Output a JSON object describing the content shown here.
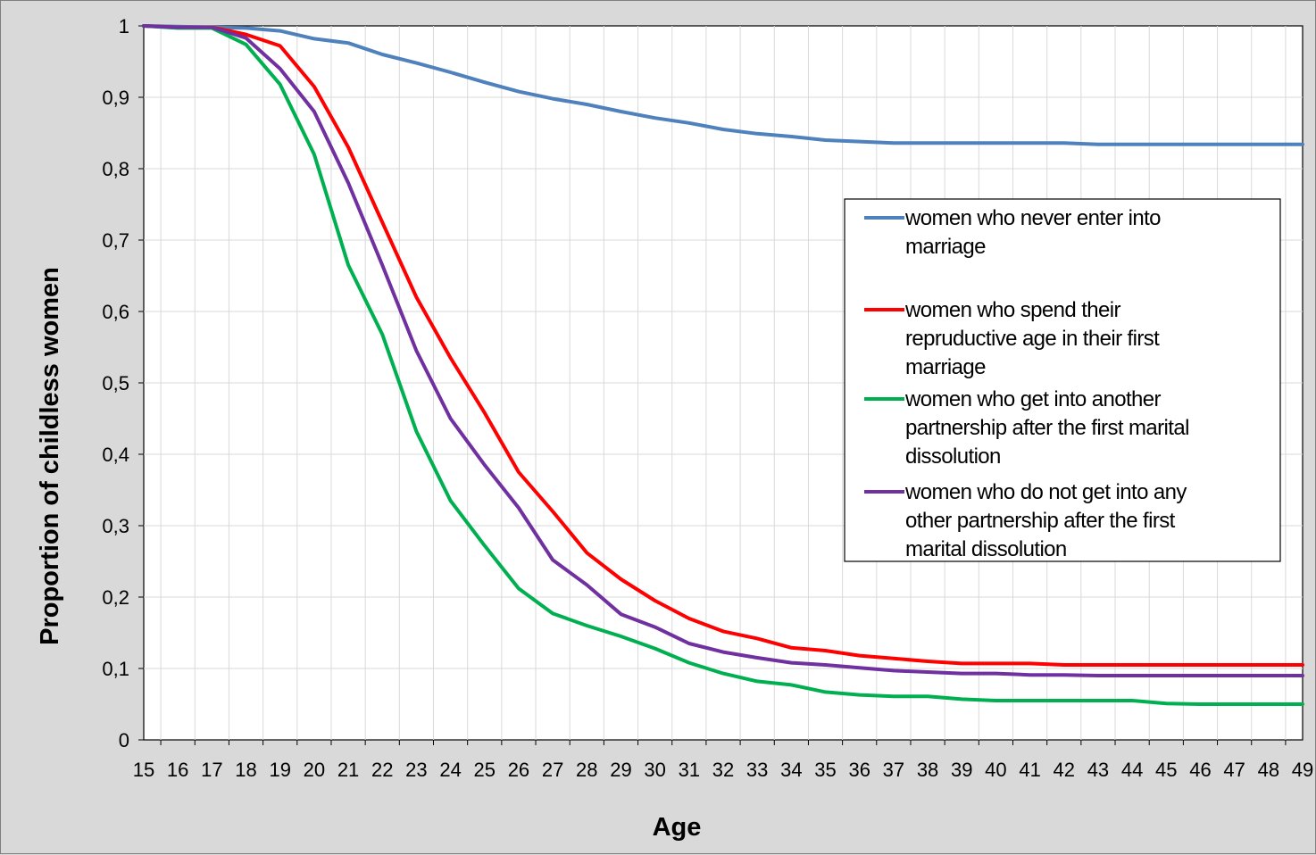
{
  "chart_data": {
    "type": "line",
    "title": "",
    "xlabel": "Age",
    "ylabel": "Proportion of childless women",
    "x": [
      15,
      16,
      17,
      18,
      19,
      20,
      21,
      22,
      23,
      24,
      25,
      26,
      27,
      28,
      29,
      30,
      31,
      32,
      33,
      34,
      35,
      36,
      37,
      38,
      39,
      40,
      41,
      42,
      43,
      44,
      45,
      46,
      47,
      48,
      49
    ],
    "yticks": [
      "0",
      "0,1",
      "0,2",
      "0,3",
      "0,4",
      "0,5",
      "0,6",
      "0,7",
      "0,8",
      "0,9",
      "1"
    ],
    "ylim": [
      0,
      1
    ],
    "grid": true,
    "legend_position": "right",
    "series": [
      {
        "name_lines": [
          "women who never enter into",
          "marriage"
        ],
        "color": "#4f81bd",
        "values": [
          1.0,
          0.999,
          0.998,
          0.997,
          0.993,
          0.982,
          0.976,
          0.96,
          0.948,
          0.935,
          0.921,
          0.908,
          0.898,
          0.89,
          0.88,
          0.871,
          0.864,
          0.855,
          0.849,
          0.845,
          0.84,
          0.838,
          0.836,
          0.836,
          0.836,
          0.836,
          0.836,
          0.836,
          0.834,
          0.834,
          0.834,
          0.834,
          0.834,
          0.834,
          0.834
        ]
      },
      {
        "name_lines": [
          "women who spend their",
          "repruductive age in their first",
          "marriage"
        ],
        "color": "#ff0000",
        "values": [
          1.0,
          0.998,
          0.998,
          0.988,
          0.972,
          0.915,
          0.83,
          0.725,
          0.62,
          0.535,
          0.458,
          0.375,
          0.32,
          0.262,
          0.225,
          0.195,
          0.17,
          0.152,
          0.142,
          0.129,
          0.125,
          0.118,
          0.114,
          0.11,
          0.107,
          0.107,
          0.107,
          0.105,
          0.105,
          0.105,
          0.105,
          0.105,
          0.105,
          0.105,
          0.105
        ]
      },
      {
        "name_lines": [
          "women who get into another",
          "partnership after the first marital",
          "dissolution"
        ],
        "color": "#00b050",
        "values": [
          1.0,
          0.997,
          0.997,
          0.974,
          0.918,
          0.82,
          0.665,
          0.568,
          0.432,
          0.335,
          0.272,
          0.212,
          0.177,
          0.16,
          0.145,
          0.128,
          0.108,
          0.093,
          0.082,
          0.077,
          0.067,
          0.063,
          0.061,
          0.061,
          0.057,
          0.055,
          0.055,
          0.055,
          0.055,
          0.055,
          0.051,
          0.05,
          0.05,
          0.05,
          0.05
        ]
      },
      {
        "name_lines": [
          "women who do not get into any",
          "other partnership after the first",
          "marital dissolution"
        ],
        "color": "#7030a0",
        "values": [
          1.0,
          0.998,
          0.998,
          0.983,
          0.94,
          0.88,
          0.78,
          0.665,
          0.545,
          0.45,
          0.385,
          0.325,
          0.252,
          0.217,
          0.176,
          0.158,
          0.135,
          0.123,
          0.115,
          0.108,
          0.105,
          0.101,
          0.097,
          0.095,
          0.093,
          0.093,
          0.091,
          0.091,
          0.09,
          0.09,
          0.09,
          0.09,
          0.09,
          0.09,
          0.09
        ]
      }
    ]
  }
}
